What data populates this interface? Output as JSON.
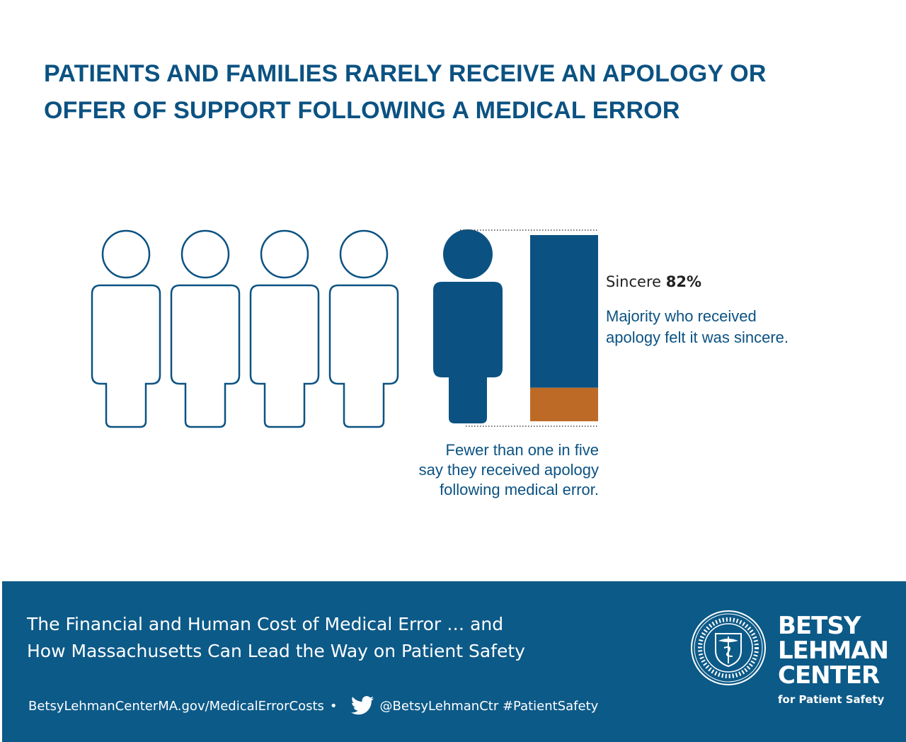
{
  "title": {
    "line1": "PATIENTS AND FAMILIES RARELY RECEIVE AN APOLOGY OR",
    "line2": "OFFER OF SUPPORT FOLLOWING A MEDICAL ERROR"
  },
  "chart_data": {
    "type": "pictogram-and-stacked-bar",
    "pictogram": {
      "total_figures": 5,
      "highlighted_figures": 1
    },
    "bar": {
      "segments": [
        {
          "value": 82,
          "color": "#0b5282"
        },
        {
          "value": 18,
          "color": "#bd6a27"
        }
      ]
    },
    "sincere": {
      "label": "Sincere",
      "value_text": "82%"
    },
    "annotation_right": {
      "line1": "Majority who received",
      "line2": "apology felt it was sincere."
    },
    "annotation_bottom": {
      "line1": "Fewer than one in five",
      "line2": "say they received apology",
      "line3": "following medical error."
    },
    "colors": {
      "outline": "#0b5282",
      "filled": "#0b5282",
      "accent": "#bd6a27"
    }
  },
  "footer": {
    "title_line1": "The Financial and Human Cost of Medical Error … and",
    "title_line2": "How Massachusetts Can Lead the Way on Patient Safety",
    "url": "BetsyLehmanCenterMA.gov/MedicalErrorCosts",
    "bullet": "•",
    "twitter_icon": "twitter-bird-icon",
    "handle": "@BetsyLehmanCtr #PatientSafety",
    "logo": {
      "line1": "BETSY",
      "line2": "LEHMAN",
      "line3": "CENTER",
      "line4": "for Patient Safety"
    },
    "seal": "massachusetts-seal-icon",
    "background": "#0c5a88"
  }
}
